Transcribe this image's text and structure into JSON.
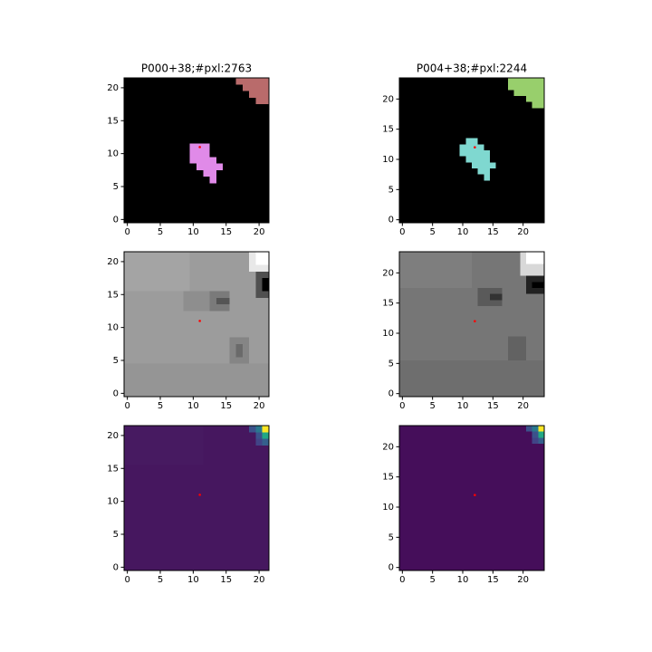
{
  "chart_data": [
    {
      "type": "image",
      "title": "P000+38;#pxl:2763",
      "xlim": [
        -0.5,
        21.5
      ],
      "ylim": [
        -0.5,
        21.5
      ],
      "xticks": [
        0,
        5,
        10,
        15,
        20
      ],
      "yticks": [
        0,
        5,
        10,
        15,
        20
      ],
      "x": [
        11
      ],
      "y": [
        11
      ],
      "color": "#ff0000"
    },
    {
      "type": "image",
      "title": "P004+38;#pxl:2244",
      "xlim": [
        -0.5,
        23.5
      ],
      "ylim": [
        -0.5,
        23.5
      ],
      "xticks": [
        0,
        5,
        10,
        15,
        20
      ],
      "yticks": [
        0,
        5,
        10,
        15,
        20
      ],
      "x": [
        12
      ],
      "y": [
        12
      ],
      "color": "#ff0000"
    },
    {
      "type": "image",
      "xlim": [
        -0.5,
        21.5
      ],
      "ylim": [
        -0.5,
        21.5
      ],
      "xticks": [
        0,
        5,
        10,
        15,
        20
      ],
      "yticks": [
        0,
        5,
        10,
        15,
        20
      ],
      "x": [
        11
      ],
      "y": [
        11
      ],
      "color": "#ff0000"
    },
    {
      "type": "image",
      "xlim": [
        -0.5,
        23.5
      ],
      "ylim": [
        -0.5,
        23.5
      ],
      "xticks": [
        0,
        5,
        10,
        15,
        20
      ],
      "yticks": [
        0,
        5,
        10,
        15,
        20
      ],
      "x": [
        12
      ],
      "y": [
        12
      ],
      "color": "#ff0000"
    },
    {
      "type": "image",
      "xlim": [
        -0.5,
        21.5
      ],
      "ylim": [
        -0.5,
        21.5
      ],
      "xticks": [
        0,
        5,
        10,
        15,
        20
      ],
      "yticks": [
        0,
        5,
        10,
        15,
        20
      ],
      "x": [
        11
      ],
      "y": [
        11
      ],
      "color": "#ff0000"
    },
    {
      "type": "image",
      "xlim": [
        -0.5,
        23.5
      ],
      "ylim": [
        -0.5,
        23.5
      ],
      "xticks": [
        0,
        5,
        10,
        15,
        20
      ],
      "yticks": [
        0,
        5,
        10,
        15,
        20
      ],
      "x": [
        12
      ],
      "y": [
        12
      ],
      "color": "#ff0000"
    }
  ]
}
